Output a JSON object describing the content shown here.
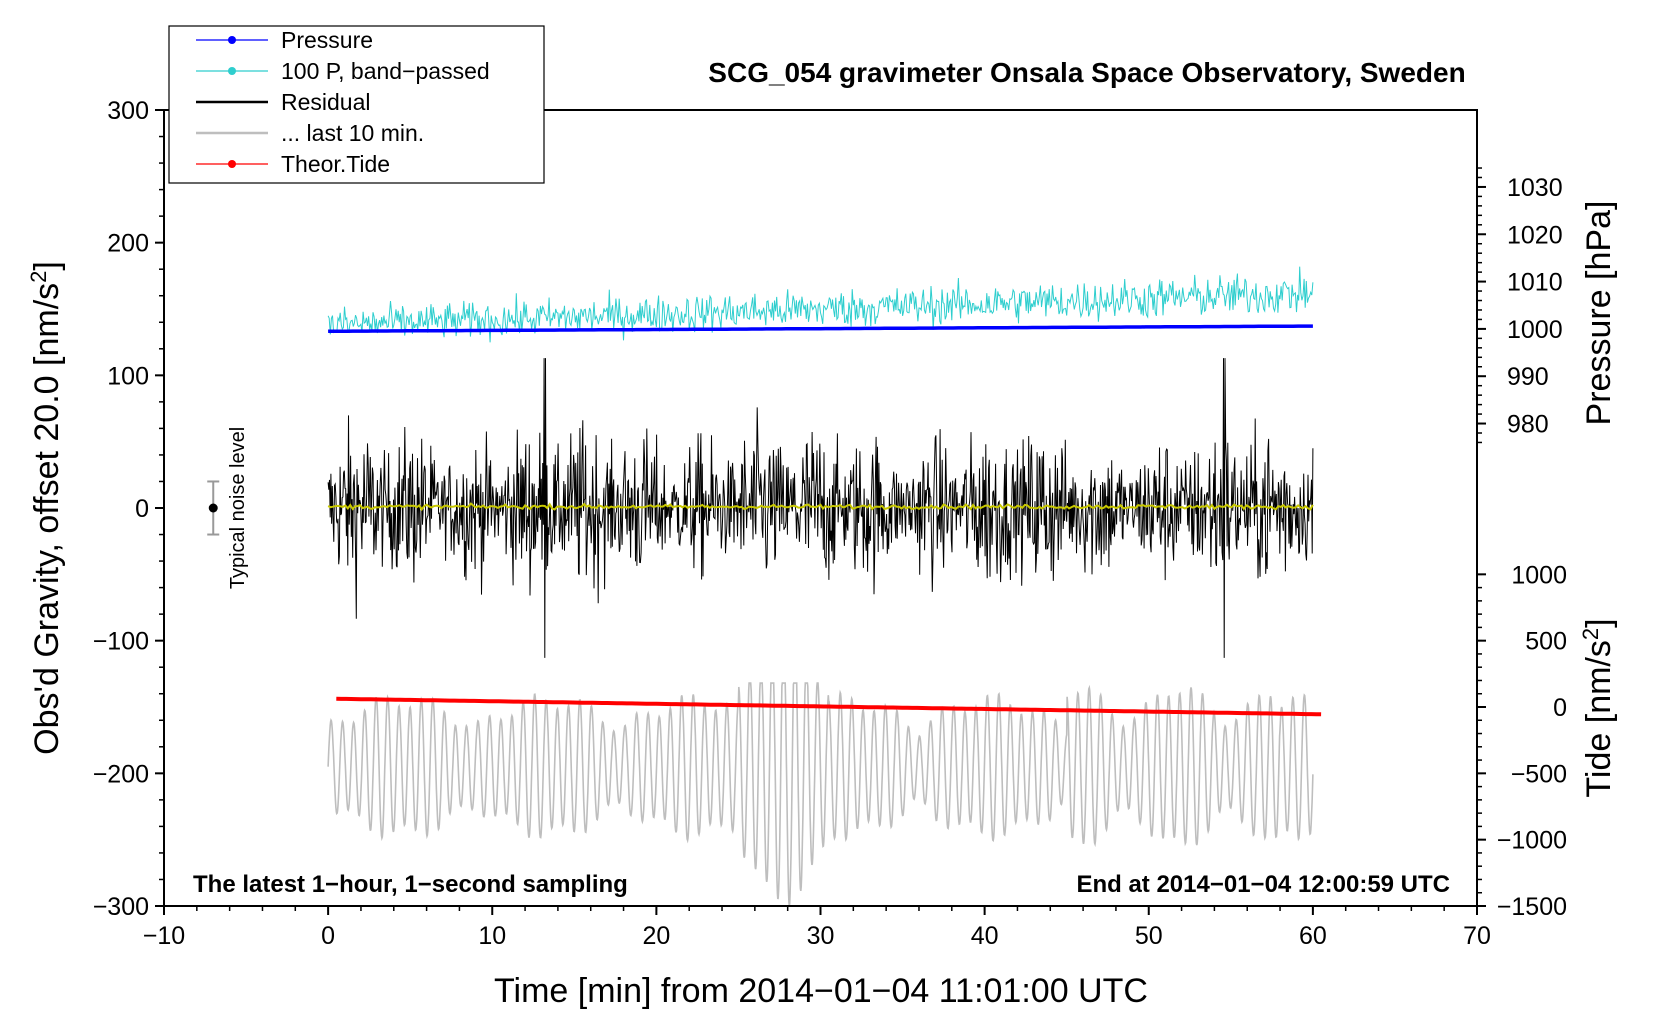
{
  "chart_data": {
    "type": "line",
    "title": "SCG_054 gravimeter Onsala Space Observatory, Sweden",
    "xlabel": "Time [min] from 2014−01−04 11:01:00 UTC",
    "ylabel_main": "Obs'd Gravity, offset 20.0 [nm/s",
    "ylabel_unit_sup": "2",
    "ylabel_close": "]",
    "ylabel_pressure": "Pressure [hPa]",
    "ylabel_tide_main": "Tide [nm/s",
    "ylabel_tide_sup": "2",
    "ylabel_tide_close": "]",
    "xlim": [
      -10,
      70
    ],
    "ylim": [
      -300,
      300
    ],
    "x_ticks": [
      -10,
      0,
      10,
      20,
      30,
      40,
      50,
      60,
      70
    ],
    "x_tick_labels": [
      "−10",
      "0",
      "10",
      "20",
      "30",
      "40",
      "50",
      "60",
      "70"
    ],
    "y_ticks": [
      -300,
      -200,
      -100,
      0,
      100,
      200,
      300
    ],
    "y_tick_labels": [
      "−300",
      "−200",
      "−100",
      "0",
      "100",
      "200",
      "300"
    ],
    "pressure_axis": {
      "ticks": [
        980,
        990,
        1000,
        1010,
        1020,
        1030
      ],
      "tick_labels": [
        "980",
        "990",
        "1000",
        "1010",
        "1020",
        "1030"
      ],
      "map_a": [
        1000,
        135
      ],
      "map_b": [
        1030,
        242
      ]
    },
    "tide_axis": {
      "ticks": [
        -1500,
        -1000,
        -500,
        0,
        500,
        1000
      ],
      "tick_labels": [
        "−1500",
        "−1000",
        "−500",
        "0",
        "500",
        "1000"
      ],
      "map_a": [
        -1500,
        -300
      ],
      "map_b": [
        1000,
        -50
      ]
    },
    "legend": {
      "location": "top-left",
      "entries": [
        {
          "label": "Pressure",
          "color": "#0000ff",
          "marker": true
        },
        {
          "label": "100 P, band−passed",
          "color": "#2ecece",
          "marker": true
        },
        {
          "label": "Residual",
          "color": "#000000",
          "marker": false
        },
        {
          "label": "... last 10 min.",
          "color": "#bebebe",
          "marker": false
        },
        {
          "label": "Theor.Tide",
          "color": "#ff0000",
          "marker": true
        }
      ]
    },
    "series": [
      {
        "name": "Pressure",
        "axis": "pressure",
        "color": "#0000ff",
        "x_range": [
          0,
          60
        ],
        "values_start_end": [
          999.5,
          1000.6
        ]
      },
      {
        "name": "100 P, band-passed",
        "axis": "gravity",
        "color": "#2ecece",
        "x_range": [
          0,
          60
        ],
        "center_start_end": [
          138,
          162
        ],
        "half_amplitude_start_end": [
          12,
          14
        ]
      },
      {
        "name": "Residual",
        "axis": "gravity",
        "color": "#000000",
        "x_range": [
          0,
          60
        ],
        "typical_extent": 70,
        "max": 113,
        "min": -113
      },
      {
        "name": "Residual smoothed",
        "axis": "gravity",
        "color": "#c8c800",
        "x_range": [
          0,
          60
        ],
        "level": 1
      },
      {
        "name": "... last 10 min.",
        "axis": "gravity",
        "color": "#bebebe",
        "x_range": [
          0,
          60
        ],
        "center": -195,
        "min": -300,
        "max": -132
      },
      {
        "name": "Theor.Tide",
        "axis": "tide",
        "color": "#ff0000",
        "x_range": [
          0.5,
          60.5
        ],
        "values_start_end": [
          62,
          -55
        ]
      }
    ],
    "noise_marker": {
      "label": "Typical noise level",
      "x": -7,
      "y": 0,
      "error": 20
    },
    "annotations": {
      "left": "The latest 1−hour, 1−second sampling",
      "right": "End at 2014−01−04 12:00:59 UTC"
    }
  }
}
